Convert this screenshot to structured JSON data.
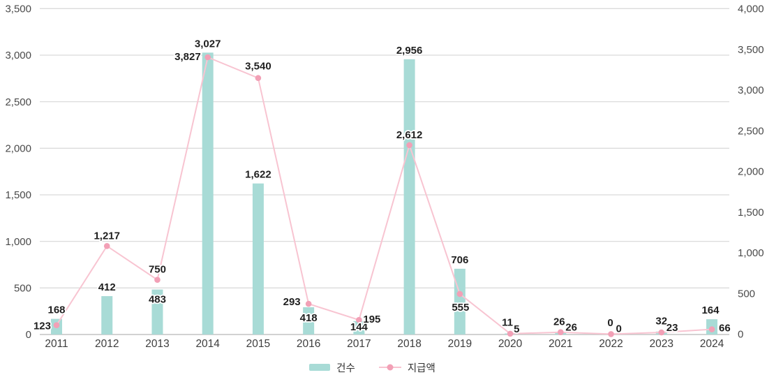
{
  "chart_data": {
    "type": "bar",
    "subtype": "combo-bar-line",
    "categories": [
      "2011",
      "2012",
      "2013",
      "2014",
      "2015",
      "2016",
      "2017",
      "2018",
      "2019",
      "2020",
      "2021",
      "2022",
      "2023",
      "2024"
    ],
    "series": [
      {
        "name": "건수",
        "type": "bar",
        "axis": "left",
        "color": "#a8dbd6",
        "values": [
          168,
          412,
          483,
          3027,
          1622,
          293,
          144,
          2956,
          706,
          11,
          26,
          0,
          32,
          164
        ]
      },
      {
        "name": "지급액",
        "type": "line",
        "axis": "right",
        "color": "#f2a0b6",
        "line_color": "#f8c4d1",
        "values": [
          123,
          1217,
          750,
          3827,
          3540,
          418,
          195,
          2612,
          555,
          5,
          26,
          0,
          23,
          66
        ]
      }
    ],
    "y_axis_left": {
      "range": [
        0,
        3500
      ],
      "tick_step": 500,
      "tick_labels": [
        "0",
        "500",
        "1,000",
        "1,500",
        "2,000",
        "2,500",
        "3,000",
        "3,500"
      ]
    },
    "y_axis_right": {
      "range": [
        0,
        4000
      ],
      "tick_step": 500,
      "tick_labels": [
        "0",
        "500",
        "1,000",
        "1,500",
        "2,000",
        "2,500",
        "3,000",
        "3,500",
        "4,000"
      ]
    },
    "legend": {
      "position": "bottom",
      "entries": [
        "건수",
        "지급액"
      ]
    },
    "grid": "horizontal",
    "background": "#ffffff"
  },
  "colors": {
    "bar": "#a8dbd6",
    "line": "#f8c4d1",
    "point": "#f2a0b6",
    "gridline": "#dbdbdb",
    "baseline": "#c3c3c3",
    "axis_text": "#4a4a4a",
    "data_label": "#1f1f1f"
  }
}
